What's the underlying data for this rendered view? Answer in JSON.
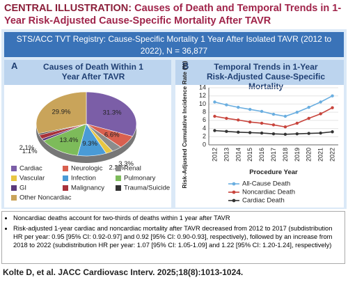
{
  "header": {
    "label": "CENTRAL ILLUSTRATION:",
    "title": "Causes of Death and Temporal Trends in 1-Year Risk-Adjusted Cause-Specific Mortality After TAVR"
  },
  "banner": "STS/ACC TVT Registry: Cause-Specific Mortality 1 Year After Isolated TAVR (2012 to 2022), N = 36,877",
  "chart_data": [
    {
      "type": "pie",
      "panel": "A",
      "title": "Causes of Death Within 1 Year After TAVR",
      "categories": [
        "Cardiac",
        "Neurologic",
        "Renal",
        "Vascular",
        "Infection",
        "Pulmonary",
        "GI",
        "Malignancy",
        "Trauma/Suicide",
        "Other Noncardiac"
      ],
      "values": [
        31.3,
        6.6,
        3.3,
        2.3,
        9.3,
        13.4,
        1.1,
        2.1,
        0.7,
        29.9
      ],
      "value_labels": [
        "31.3%",
        "6.6%",
        "3.3%",
        "2.3%",
        "9.3%",
        "13.4%",
        "1.1%",
        "2.1%",
        null,
        "29.9%"
      ],
      "colors": [
        "#7b5ea7",
        "#d9604f",
        "#8c8c8c",
        "#e8c642",
        "#4a9bd6",
        "#7dbb5a",
        "#5a3a7a",
        "#a8323a",
        "#333333",
        "#c9a45a"
      ]
    },
    {
      "type": "line",
      "panel": "B",
      "title": "Temporal Trends in 1-Year Risk-Adjusted Cause-Specific Mortality",
      "y_label": "Risk-Adjusted Cumulative Incidence Rate (%)",
      "x_label": "Procedure Year",
      "categories": [
        "2012",
        "2013",
        "2014",
        "2015",
        "2016",
        "2017",
        "2018",
        "2019",
        "2020",
        "2021",
        "2022"
      ],
      "ylim": [
        0,
        14
      ],
      "yticks": [
        0,
        2,
        4,
        6,
        8,
        10,
        12,
        14
      ],
      "grid": true,
      "series": [
        {
          "name": "All-Cause Death",
          "color": "#6aaee0",
          "values": [
            10.5,
            9.8,
            9.2,
            8.7,
            8.2,
            7.5,
            7.0,
            8.0,
            9.2,
            10.5,
            12.0
          ]
        },
        {
          "name": "Noncardiac Death",
          "color": "#c8443c",
          "values": [
            7.0,
            6.5,
            6.1,
            5.6,
            5.3,
            4.9,
            4.4,
            5.3,
            6.5,
            7.6,
            9.1
          ]
        },
        {
          "name": "Cardiac Death",
          "color": "#333333",
          "values": [
            3.5,
            3.3,
            3.1,
            3.0,
            2.9,
            2.7,
            2.6,
            2.7,
            2.8,
            2.9,
            3.2
          ]
        }
      ]
    }
  ],
  "bullets": [
    "Noncardiac deaths account for two-thirds of deaths within 1 year after TAVR",
    "Risk-adjusted 1-year cardiac and noncardiac mortality after TAVR decreased from 2012 to 2017 (subdistribution HR per year: 0.95 [95% CI: 0.92-0.97] and 0.92 [95% CI: 0.90-0.93], respectively), followed by an increase from 2018 to 2022 (subdistribution HR per year: 1.07 [95% CI: 1.05-1.09] and 1.22 [95% CI: 1.20-1.24], respectively)"
  ],
  "citation": "Kolte D, et al. JACC Cardiovasc Interv. 2025;18(8):1013-1024."
}
